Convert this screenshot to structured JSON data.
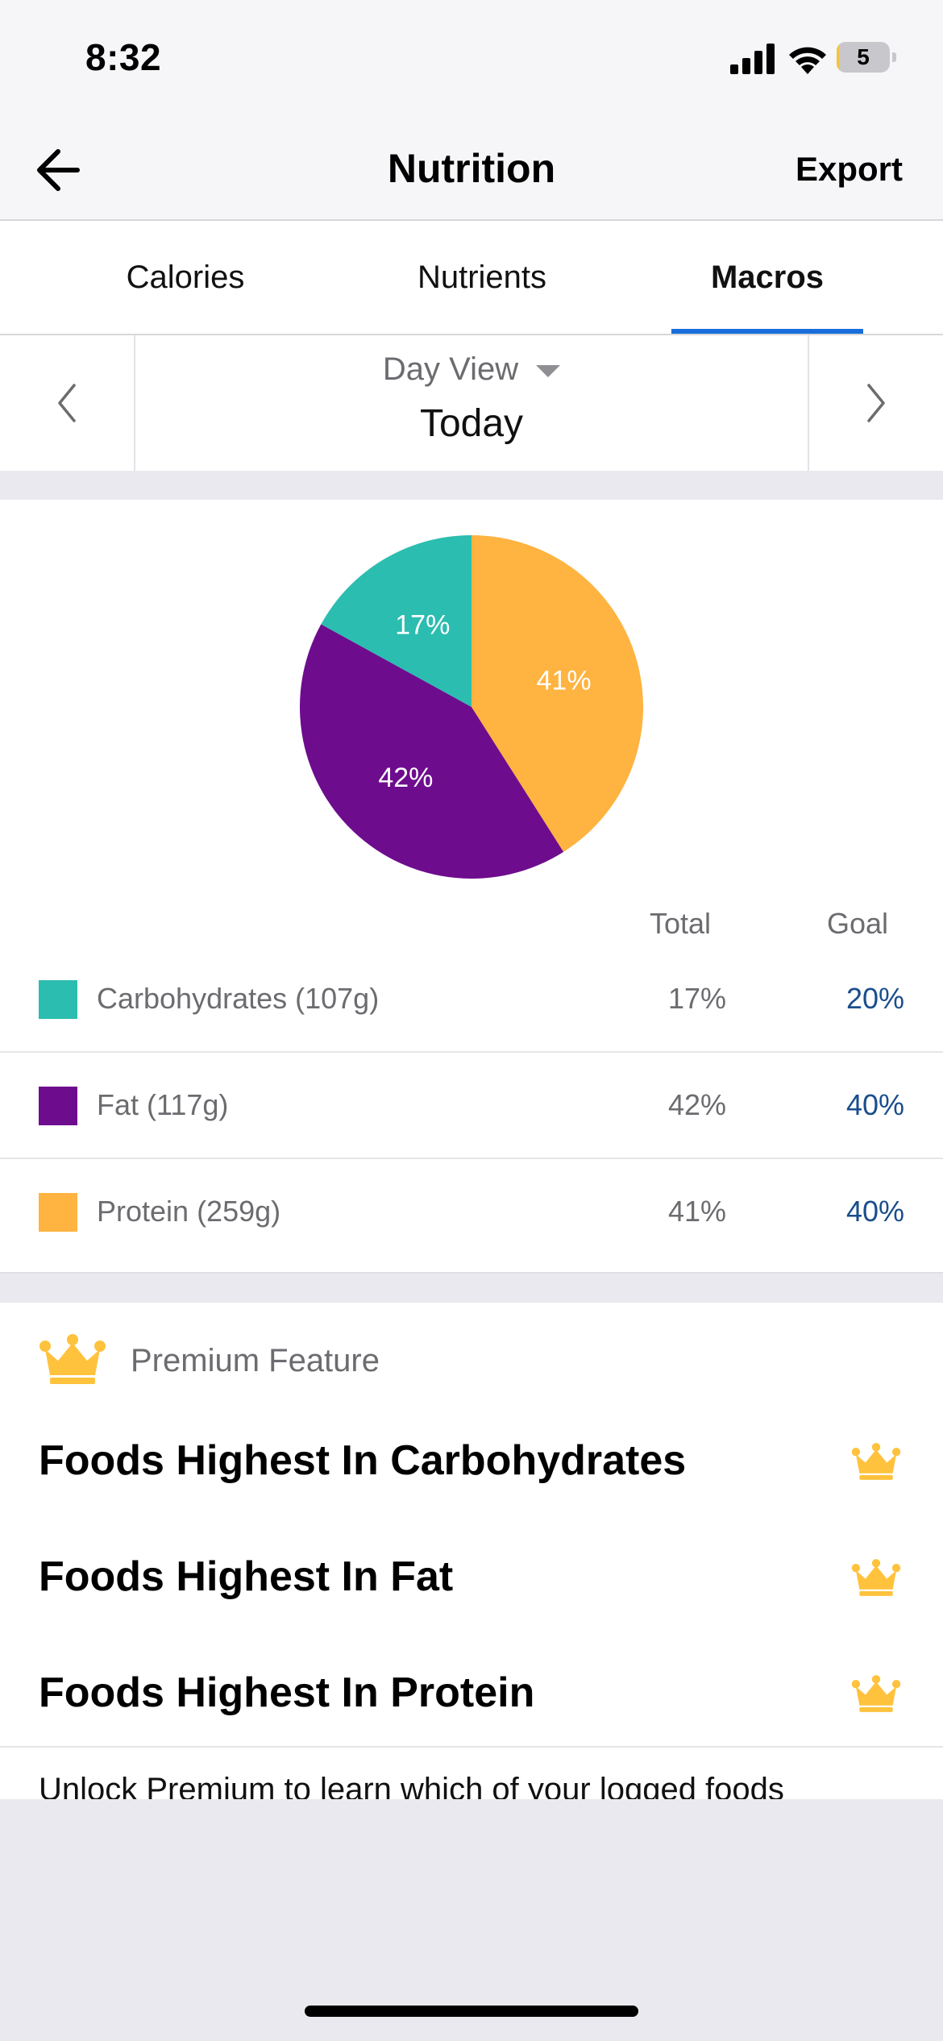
{
  "status_bar": {
    "time": "8:32",
    "battery": "5"
  },
  "nav": {
    "title": "Nutrition",
    "export_label": "Export"
  },
  "tabs": [
    {
      "label": "Calories",
      "active": false
    },
    {
      "label": "Nutrients",
      "active": false
    },
    {
      "label": "Macros",
      "active": true
    }
  ],
  "date_nav": {
    "view": "Day View",
    "date": "Today"
  },
  "chart_data": {
    "type": "pie",
    "slices": [
      {
        "label": "Protein",
        "value": 41,
        "display": "41%",
        "color": "#FFB340"
      },
      {
        "label": "Fat",
        "value": 42,
        "display": "42%",
        "color": "#6E0C8E"
      },
      {
        "label": "Carbohydrates",
        "value": 17,
        "display": "17%",
        "color": "#2BBDB0"
      }
    ]
  },
  "table": {
    "total_header": "Total",
    "goal_header": "Goal",
    "rows": [
      {
        "name": "Carbohydrates (107g)",
        "total": "17%",
        "goal": "20%",
        "color": "#2BBDB0"
      },
      {
        "name": "Fat (117g)",
        "total": "42%",
        "goal": "40%",
        "color": "#6E0C8E"
      },
      {
        "name": "Protein (259g)",
        "total": "41%",
        "goal": "40%",
        "color": "#FFB340"
      }
    ]
  },
  "premium": {
    "label": "Premium Feature",
    "features": [
      "Foods Highest In Carbohydrates",
      "Foods Highest In Fat",
      "Foods Highest In Protein"
    ],
    "unlock_text": "Unlock Premium to learn which of your logged foods"
  },
  "colors": {
    "accent": "#1A6EDB",
    "crown": "#FFC23D",
    "goal_text": "#1A4E8C"
  }
}
